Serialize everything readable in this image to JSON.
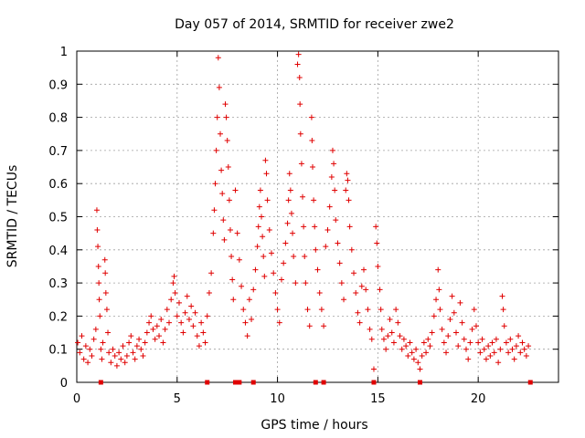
{
  "chart_data": {
    "type": "scatter",
    "title": "Day 057 of 2014, SRMTID for receiver zwe2",
    "xlabel": "GPS time / hours",
    "ylabel": "SRMTID / TECUs",
    "xlim": [
      0,
      24
    ],
    "ylim": [
      0,
      1
    ],
    "xticks": [
      0,
      5,
      10,
      15,
      20
    ],
    "xtick_labels": [
      "0",
      "5",
      "10",
      "15",
      "20"
    ],
    "yticks": [
      0,
      0.1,
      0.2,
      0.3,
      0.4,
      0.5,
      0.6,
      0.7,
      0.8,
      0.9,
      1
    ],
    "ytick_labels": [
      "0",
      "0.1",
      "0.2",
      "0.3",
      "0.4",
      "0.5",
      "0.6",
      "0.7",
      "0.8",
      "0.9",
      "1"
    ],
    "grid": true,
    "marker": "plus",
    "color": "#e00000",
    "series": [
      {
        "name": "SRMTID",
        "points": [
          [
            0.05,
            0.12
          ],
          [
            0.15,
            0.09
          ],
          [
            0.25,
            0.14
          ],
          [
            0.35,
            0.07
          ],
          [
            0.45,
            0.11
          ],
          [
            0.55,
            0.06
          ],
          [
            0.65,
            0.1
          ],
          [
            0.75,
            0.08
          ],
          [
            0.85,
            0.13
          ],
          [
            0.95,
            0.16
          ],
          [
            1.0,
            0.52
          ],
          [
            1.02,
            0.46
          ],
          [
            1.05,
            0.41
          ],
          [
            1.08,
            0.35
          ],
          [
            1.1,
            0.3
          ],
          [
            1.12,
            0.25
          ],
          [
            1.15,
            0.2
          ],
          [
            1.2,
            0.1
          ],
          [
            1.25,
            0.07
          ],
          [
            1.3,
            0.12
          ],
          [
            1.4,
            0.37
          ],
          [
            1.42,
            0.33
          ],
          [
            1.45,
            0.27
          ],
          [
            1.5,
            0.22
          ],
          [
            1.55,
            0.15
          ],
          [
            1.6,
            0.09
          ],
          [
            1.7,
            0.06
          ],
          [
            1.8,
            0.1
          ],
          [
            1.9,
            0.08
          ],
          [
            2.0,
            0.05
          ],
          [
            2.1,
            0.09
          ],
          [
            2.2,
            0.07
          ],
          [
            2.3,
            0.11
          ],
          [
            2.4,
            0.06
          ],
          [
            2.5,
            0.08
          ],
          [
            2.6,
            0.12
          ],
          [
            2.7,
            0.14
          ],
          [
            2.8,
            0.09
          ],
          [
            2.9,
            0.07
          ],
          [
            3.0,
            0.11
          ],
          [
            3.1,
            0.13
          ],
          [
            3.2,
            0.1
          ],
          [
            3.3,
            0.08
          ],
          [
            3.4,
            0.12
          ],
          [
            3.5,
            0.15
          ],
          [
            3.6,
            0.18
          ],
          [
            3.7,
            0.2
          ],
          [
            3.8,
            0.16
          ],
          [
            3.9,
            0.13
          ],
          [
            4.0,
            0.17
          ],
          [
            4.1,
            0.14
          ],
          [
            4.2,
            0.19
          ],
          [
            4.3,
            0.12
          ],
          [
            4.4,
            0.16
          ],
          [
            4.5,
            0.22
          ],
          [
            4.6,
            0.18
          ],
          [
            4.7,
            0.25
          ],
          [
            4.8,
            0.3
          ],
          [
            4.85,
            0.32
          ],
          [
            4.9,
            0.27
          ],
          [
            5.0,
            0.2
          ],
          [
            5.1,
            0.24
          ],
          [
            5.2,
            0.18
          ],
          [
            5.3,
            0.15
          ],
          [
            5.4,
            0.21
          ],
          [
            5.5,
            0.26
          ],
          [
            5.6,
            0.19
          ],
          [
            5.7,
            0.23
          ],
          [
            5.8,
            0.17
          ],
          [
            5.9,
            0.21
          ],
          [
            6.0,
            0.14
          ],
          [
            6.1,
            0.11
          ],
          [
            6.2,
            0.18
          ],
          [
            6.3,
            0.15
          ],
          [
            6.4,
            0.12
          ],
          [
            6.5,
            0.2
          ],
          [
            6.6,
            0.27
          ],
          [
            6.7,
            0.33
          ],
          [
            6.8,
            0.45
          ],
          [
            6.85,
            0.52
          ],
          [
            6.9,
            0.6
          ],
          [
            6.95,
            0.7
          ],
          [
            7.0,
            0.8
          ],
          [
            7.05,
            0.98
          ],
          [
            7.1,
            0.89
          ],
          [
            7.15,
            0.75
          ],
          [
            7.2,
            0.64
          ],
          [
            7.25,
            0.57
          ],
          [
            7.3,
            0.49
          ],
          [
            7.35,
            0.43
          ],
          [
            7.4,
            0.84
          ],
          [
            7.45,
            0.8
          ],
          [
            7.5,
            0.73
          ],
          [
            7.55,
            0.65
          ],
          [
            7.6,
            0.55
          ],
          [
            7.65,
            0.46
          ],
          [
            7.7,
            0.38
          ],
          [
            7.75,
            0.31
          ],
          [
            7.8,
            0.25
          ],
          [
            7.9,
            0.58
          ],
          [
            8.0,
            0.45
          ],
          [
            8.1,
            0.37
          ],
          [
            8.2,
            0.29
          ],
          [
            8.3,
            0.22
          ],
          [
            8.4,
            0.18
          ],
          [
            8.5,
            0.14
          ],
          [
            8.6,
            0.25
          ],
          [
            8.7,
            0.19
          ],
          [
            8.8,
            0.28
          ],
          [
            8.9,
            0.34
          ],
          [
            9.0,
            0.41
          ],
          [
            9.05,
            0.47
          ],
          [
            9.1,
            0.53
          ],
          [
            9.15,
            0.58
          ],
          [
            9.2,
            0.5
          ],
          [
            9.25,
            0.44
          ],
          [
            9.3,
            0.38
          ],
          [
            9.35,
            0.32
          ],
          [
            9.4,
            0.67
          ],
          [
            9.45,
            0.63
          ],
          [
            9.5,
            0.55
          ],
          [
            9.6,
            0.46
          ],
          [
            9.7,
            0.39
          ],
          [
            9.8,
            0.33
          ],
          [
            9.9,
            0.27
          ],
          [
            10.0,
            0.22
          ],
          [
            10.1,
            0.18
          ],
          [
            10.2,
            0.31
          ],
          [
            10.3,
            0.36
          ],
          [
            10.4,
            0.42
          ],
          [
            10.5,
            0.48
          ],
          [
            10.55,
            0.55
          ],
          [
            10.6,
            0.63
          ],
          [
            10.65,
            0.58
          ],
          [
            10.7,
            0.51
          ],
          [
            10.75,
            0.45
          ],
          [
            10.8,
            0.38
          ],
          [
            10.9,
            0.3
          ],
          [
            11.0,
            0.96
          ],
          [
            11.05,
            0.99
          ],
          [
            11.1,
            0.92
          ],
          [
            11.12,
            0.84
          ],
          [
            11.15,
            0.75
          ],
          [
            11.2,
            0.66
          ],
          [
            11.25,
            0.56
          ],
          [
            11.3,
            0.47
          ],
          [
            11.35,
            0.38
          ],
          [
            11.4,
            0.3
          ],
          [
            11.5,
            0.22
          ],
          [
            11.6,
            0.17
          ],
          [
            11.7,
            0.8
          ],
          [
            11.72,
            0.73
          ],
          [
            11.75,
            0.65
          ],
          [
            11.8,
            0.55
          ],
          [
            11.85,
            0.47
          ],
          [
            11.9,
            0.4
          ],
          [
            12.0,
            0.34
          ],
          [
            12.1,
            0.27
          ],
          [
            12.2,
            0.22
          ],
          [
            12.3,
            0.17
          ],
          [
            12.4,
            0.41
          ],
          [
            12.5,
            0.46
          ],
          [
            12.6,
            0.53
          ],
          [
            12.7,
            0.62
          ],
          [
            12.75,
            0.7
          ],
          [
            12.8,
            0.66
          ],
          [
            12.85,
            0.58
          ],
          [
            12.9,
            0.49
          ],
          [
            13.0,
            0.42
          ],
          [
            13.1,
            0.36
          ],
          [
            13.2,
            0.3
          ],
          [
            13.3,
            0.25
          ],
          [
            13.4,
            0.58
          ],
          [
            13.45,
            0.63
          ],
          [
            13.5,
            0.61
          ],
          [
            13.55,
            0.55
          ],
          [
            13.6,
            0.47
          ],
          [
            13.7,
            0.4
          ],
          [
            13.8,
            0.33
          ],
          [
            13.9,
            0.27
          ],
          [
            14.0,
            0.21
          ],
          [
            14.1,
            0.18
          ],
          [
            14.2,
            0.29
          ],
          [
            14.3,
            0.34
          ],
          [
            14.4,
            0.28
          ],
          [
            14.5,
            0.22
          ],
          [
            14.6,
            0.16
          ],
          [
            14.7,
            0.13
          ],
          [
            14.8,
            0.04
          ],
          [
            14.9,
            0.47
          ],
          [
            14.95,
            0.42
          ],
          [
            15.0,
            0.35
          ],
          [
            15.1,
            0.28
          ],
          [
            15.15,
            0.22
          ],
          [
            15.2,
            0.16
          ],
          [
            15.3,
            0.13
          ],
          [
            15.4,
            0.1
          ],
          [
            15.5,
            0.14
          ],
          [
            15.6,
            0.19
          ],
          [
            15.7,
            0.15
          ],
          [
            15.8,
            0.12
          ],
          [
            15.9,
            0.22
          ],
          [
            16.0,
            0.18
          ],
          [
            16.1,
            0.14
          ],
          [
            16.2,
            0.1
          ],
          [
            16.3,
            0.13
          ],
          [
            16.4,
            0.11
          ],
          [
            16.5,
            0.08
          ],
          [
            16.6,
            0.12
          ],
          [
            16.7,
            0.09
          ],
          [
            16.8,
            0.07
          ],
          [
            16.9,
            0.1
          ],
          [
            17.0,
            0.06
          ],
          [
            17.1,
            0.04
          ],
          [
            17.2,
            0.08
          ],
          [
            17.3,
            0.12
          ],
          [
            17.4,
            0.09
          ],
          [
            17.5,
            0.13
          ],
          [
            17.6,
            0.11
          ],
          [
            17.7,
            0.15
          ],
          [
            17.8,
            0.2
          ],
          [
            17.9,
            0.25
          ],
          [
            18.0,
            0.34
          ],
          [
            18.05,
            0.28
          ],
          [
            18.1,
            0.22
          ],
          [
            18.2,
            0.16
          ],
          [
            18.3,
            0.12
          ],
          [
            18.4,
            0.09
          ],
          [
            18.5,
            0.14
          ],
          [
            18.6,
            0.19
          ],
          [
            18.7,
            0.26
          ],
          [
            18.8,
            0.21
          ],
          [
            18.9,
            0.15
          ],
          [
            19.0,
            0.11
          ],
          [
            19.1,
            0.24
          ],
          [
            19.2,
            0.18
          ],
          [
            19.3,
            0.13
          ],
          [
            19.4,
            0.1
          ],
          [
            19.5,
            0.07
          ],
          [
            19.6,
            0.12
          ],
          [
            19.7,
            0.16
          ],
          [
            19.8,
            0.22
          ],
          [
            19.9,
            0.17
          ],
          [
            20.0,
            0.12
          ],
          [
            20.1,
            0.09
          ],
          [
            20.2,
            0.13
          ],
          [
            20.3,
            0.1
          ],
          [
            20.4,
            0.07
          ],
          [
            20.5,
            0.11
          ],
          [
            20.6,
            0.08
          ],
          [
            20.7,
            0.12
          ],
          [
            20.8,
            0.09
          ],
          [
            20.9,
            0.13
          ],
          [
            21.0,
            0.06
          ],
          [
            21.1,
            0.1
          ],
          [
            21.2,
            0.26
          ],
          [
            21.25,
            0.22
          ],
          [
            21.3,
            0.17
          ],
          [
            21.4,
            0.12
          ],
          [
            21.5,
            0.09
          ],
          [
            21.6,
            0.13
          ],
          [
            21.7,
            0.1
          ],
          [
            21.8,
            0.07
          ],
          [
            21.9,
            0.11
          ],
          [
            22.0,
            0.14
          ],
          [
            22.1,
            0.09
          ],
          [
            22.2,
            0.12
          ],
          [
            22.3,
            0.1
          ],
          [
            22.4,
            0.08
          ],
          [
            22.5,
            0.11
          ]
        ]
      }
    ],
    "outage_markers_x": [
      1.2,
      6.5,
      7.9,
      8.1,
      8.8,
      11.9,
      12.3,
      14.8,
      17.1,
      22.6
    ]
  }
}
